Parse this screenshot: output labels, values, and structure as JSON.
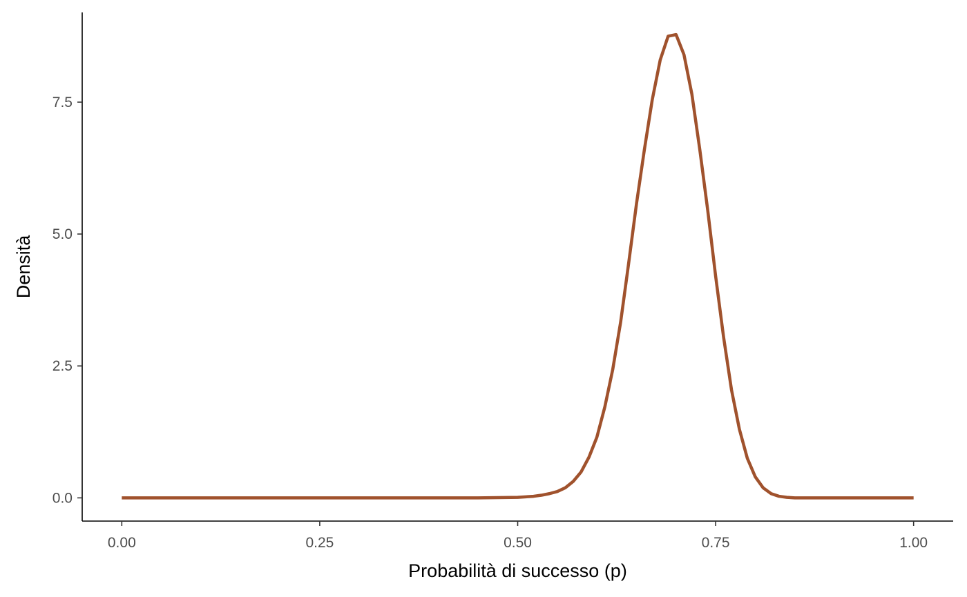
{
  "chart_data": {
    "type": "line",
    "xlabel": "Probabilità di successo (p)",
    "ylabel": "Densità",
    "xlim": [
      -0.05,
      1.05
    ],
    "ylim": [
      -0.44,
      9.2
    ],
    "x_ticks": [
      0,
      0.25,
      0.5,
      0.75,
      1
    ],
    "x_tick_labels": [
      "0.00",
      "0.25",
      "0.50",
      "0.75",
      "1.00"
    ],
    "y_ticks": [
      0,
      2.5,
      5,
      7.5
    ],
    "y_tick_labels": [
      "0.0",
      "2.5",
      "5.0",
      "7.5"
    ],
    "grid": false,
    "line_color": "#a0522d",
    "series": [
      {
        "x": [
          0,
          0.1,
          0.2,
          0.3,
          0.4,
          0.45,
          0.5,
          0.51,
          0.52,
          0.53,
          0.54,
          0.55,
          0.56,
          0.57,
          0.58,
          0.59,
          0.6,
          0.61,
          0.62,
          0.63,
          0.64,
          0.65,
          0.66,
          0.67,
          0.68,
          0.69,
          0.7,
          0.71,
          0.72,
          0.73,
          0.74,
          0.75,
          0.76,
          0.77,
          0.78,
          0.79,
          0.8,
          0.81,
          0.82,
          0.83,
          0.84,
          0.85,
          0.86,
          0.88,
          0.9,
          0.95,
          1
        ],
        "y": [
          0,
          0,
          0,
          0,
          0,
          0,
          0.01,
          0.02,
          0.03,
          0.05,
          0.08,
          0.12,
          0.19,
          0.31,
          0.49,
          0.77,
          1.15,
          1.72,
          2.43,
          3.33,
          4.43,
          5.57,
          6.6,
          7.55,
          8.3,
          8.75,
          8.78,
          8.4,
          7.65,
          6.6,
          5.45,
          4.2,
          3.05,
          2.05,
          1.3,
          0.75,
          0.4,
          0.19,
          0.08,
          0.03,
          0.01,
          0,
          0,
          0,
          0,
          0,
          0
        ]
      }
    ]
  }
}
